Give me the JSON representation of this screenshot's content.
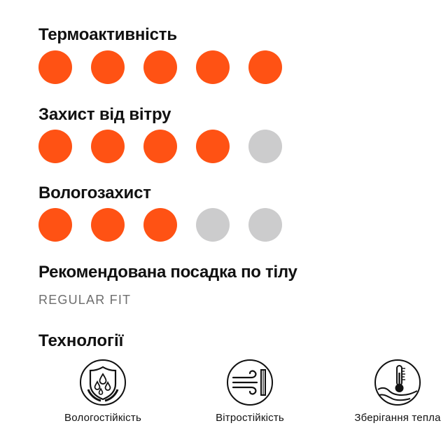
{
  "ratings": [
    {
      "title": "Термоактивність",
      "level": 5,
      "max": 5
    },
    {
      "title": "Захист від вітру",
      "level": 4,
      "max": 5
    },
    {
      "title": "Вологозахист",
      "level": 3,
      "max": 5
    }
  ],
  "fit": {
    "title": "Рекомендована посадка по тілу",
    "value": "REGULAR FIT"
  },
  "technologies": {
    "title": "Технології",
    "items": [
      {
        "icon": "water-drops-shield-icon",
        "label": "Вологостійкість"
      },
      {
        "icon": "wind-icon",
        "label": "Вітростійкість"
      },
      {
        "icon": "thermometer-hand-icon",
        "label": "Зберігання тепла"
      }
    ]
  },
  "colors": {
    "dot_active": "#ff5214",
    "dot_inactive": "#cccccd"
  }
}
